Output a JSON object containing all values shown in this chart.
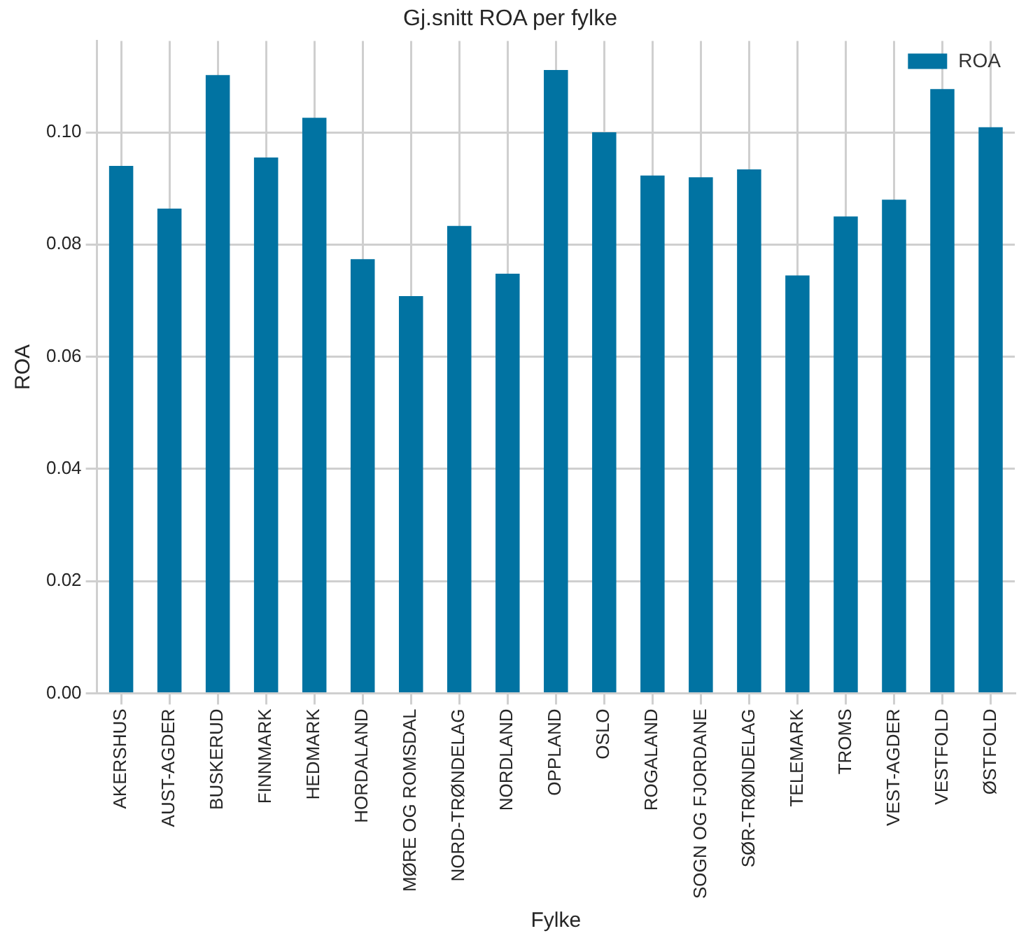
{
  "chart_data": {
    "type": "bar",
    "title": "Gj.snitt ROA per fylke",
    "xlabel": "Fylke",
    "ylabel": "ROA",
    "categories": [
      "AKERSHUS",
      "AUST-AGDER",
      "BUSKERUD",
      "FINNMARK",
      "HEDMARK",
      "HORDALAND",
      "MØRE OG ROMSDAL",
      "NORD-TRØNDELAG",
      "NORDLAND",
      "OPPLAND",
      "OSLO",
      "ROGALAND",
      "SOGN OG FJORDANE",
      "SØR-TRØNDELAG",
      "TELEMARK",
      "TROMS",
      "VEST-AGDER",
      "VESTFOLD",
      "ØSTFOLD"
    ],
    "series": [
      {
        "name": "ROA",
        "color": "#0173a2",
        "values": [
          0.094,
          0.0864,
          0.1102,
          0.0955,
          0.1026,
          0.0774,
          0.0708,
          0.0833,
          0.0748,
          0.1111,
          0.1,
          0.0923,
          0.092,
          0.0934,
          0.0745,
          0.085,
          0.088,
          0.1077,
          0.1009
        ]
      }
    ],
    "ylim": [
      0,
      0.1163
    ],
    "yticks": [
      {
        "value": 0,
        "label": "0.00"
      },
      {
        "value": 0.02,
        "label": "0.02"
      },
      {
        "value": 0.04,
        "label": "0.04"
      },
      {
        "value": 0.06,
        "label": "0.06"
      },
      {
        "value": 0.08,
        "label": "0.08"
      },
      {
        "value": 0.1,
        "label": "0.10"
      }
    ],
    "grid": true,
    "legend": "top right"
  }
}
